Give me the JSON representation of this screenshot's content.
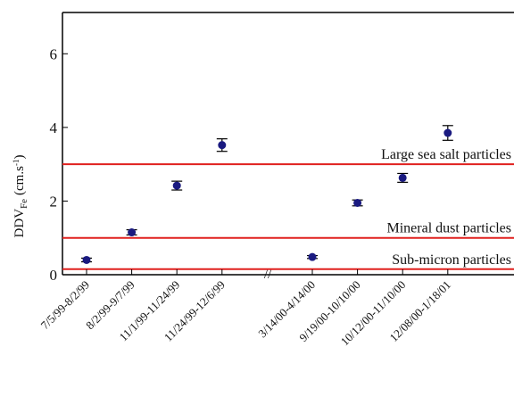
{
  "chart_data": {
    "type": "scatter",
    "y_label": {
      "main": "DDV",
      "sub": "Fe",
      "unit": "(cm.s",
      "sup": "-1",
      "close": ")"
    },
    "categories": [
      "7/5/99-8/2/99",
      "8/2/99-9/7/99",
      "11/1/99-11/24/99",
      "11/24/99-12/6/99",
      null,
      "3/14/00-4/14/00",
      "9/19/00-10/10/00",
      "10/12/00-11/10/00",
      "12/08/00-1/18/01"
    ],
    "series": [
      {
        "color": "#1a1a80",
        "values": [
          0.4,
          1.15,
          2.42,
          3.52,
          null,
          0.48,
          1.95,
          2.63,
          3.85
        ],
        "errors": [
          0.05,
          0.07,
          0.12,
          0.17,
          null,
          0.04,
          0.08,
          0.12,
          0.2
        ]
      }
    ],
    "reference_lines": [
      {
        "value": 3,
        "label": "Large sea salt particles"
      },
      {
        "value": 1,
        "label": "Mineral dust particles"
      },
      {
        "value": 0.15,
        "label": "Sub-micron particles"
      }
    ],
    "reference_color": "#e0201e",
    "ylim": [
      0,
      7
    ],
    "yticks": [
      0,
      2,
      4,
      6
    ]
  }
}
